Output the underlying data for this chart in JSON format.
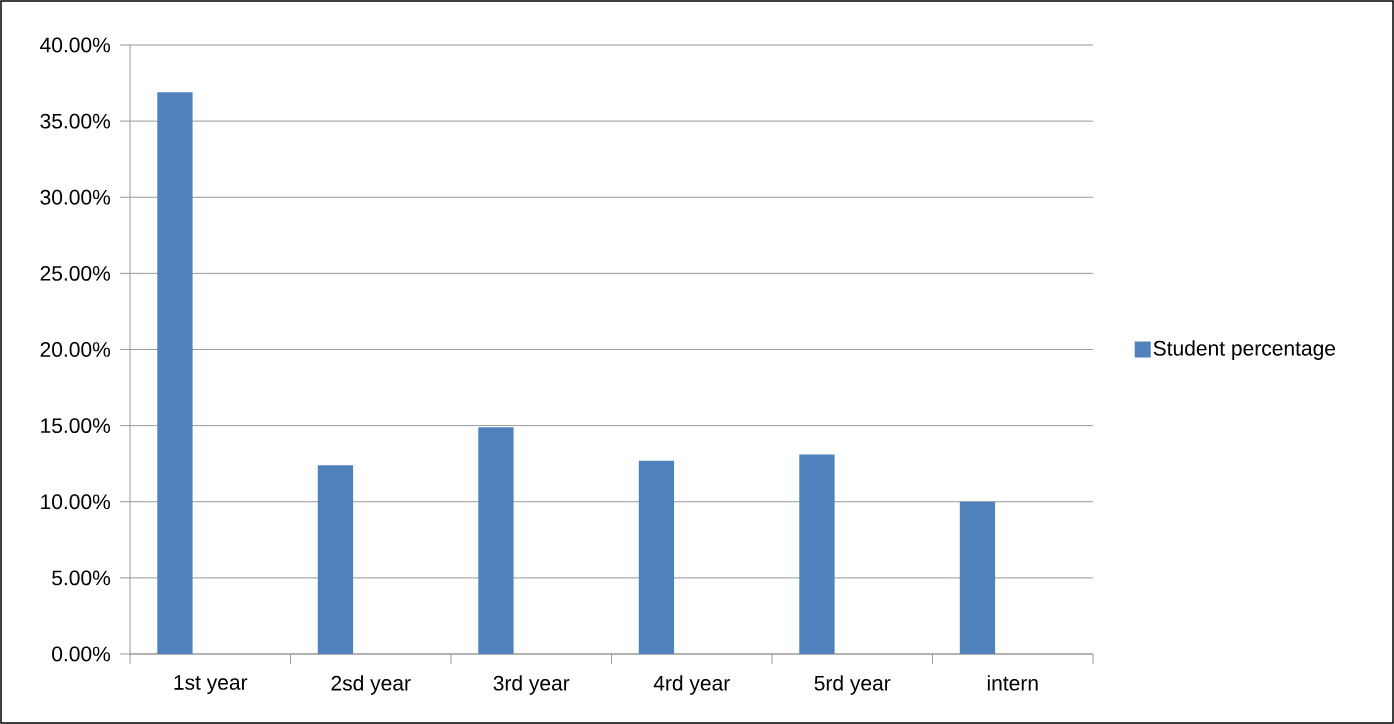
{
  "chart_data": {
    "type": "bar",
    "categories": [
      "1st year",
      "2sd year",
      "3rd year",
      "4rd year",
      "5rd year",
      "intern"
    ],
    "series": [
      {
        "name": "Student percentage",
        "color": "#4f81bd",
        "values": [
          36.9,
          12.4,
          14.9,
          12.7,
          13.1,
          10.0
        ]
      }
    ],
    "ylim": [
      0,
      40
    ],
    "yticks": [
      {
        "value": 0,
        "label": "0.00%"
      },
      {
        "value": 5,
        "label": "5.00%"
      },
      {
        "value": 10,
        "label": "10.00%"
      },
      {
        "value": 15,
        "label": "15.00%"
      },
      {
        "value": 20,
        "label": "20.00%"
      },
      {
        "value": 25,
        "label": "25.00%"
      },
      {
        "value": 30,
        "label": "30.00%"
      },
      {
        "value": 35,
        "label": "35.00%"
      },
      {
        "value": 40,
        "label": "40.00%"
      }
    ],
    "grid": "y",
    "legend": "right"
  }
}
